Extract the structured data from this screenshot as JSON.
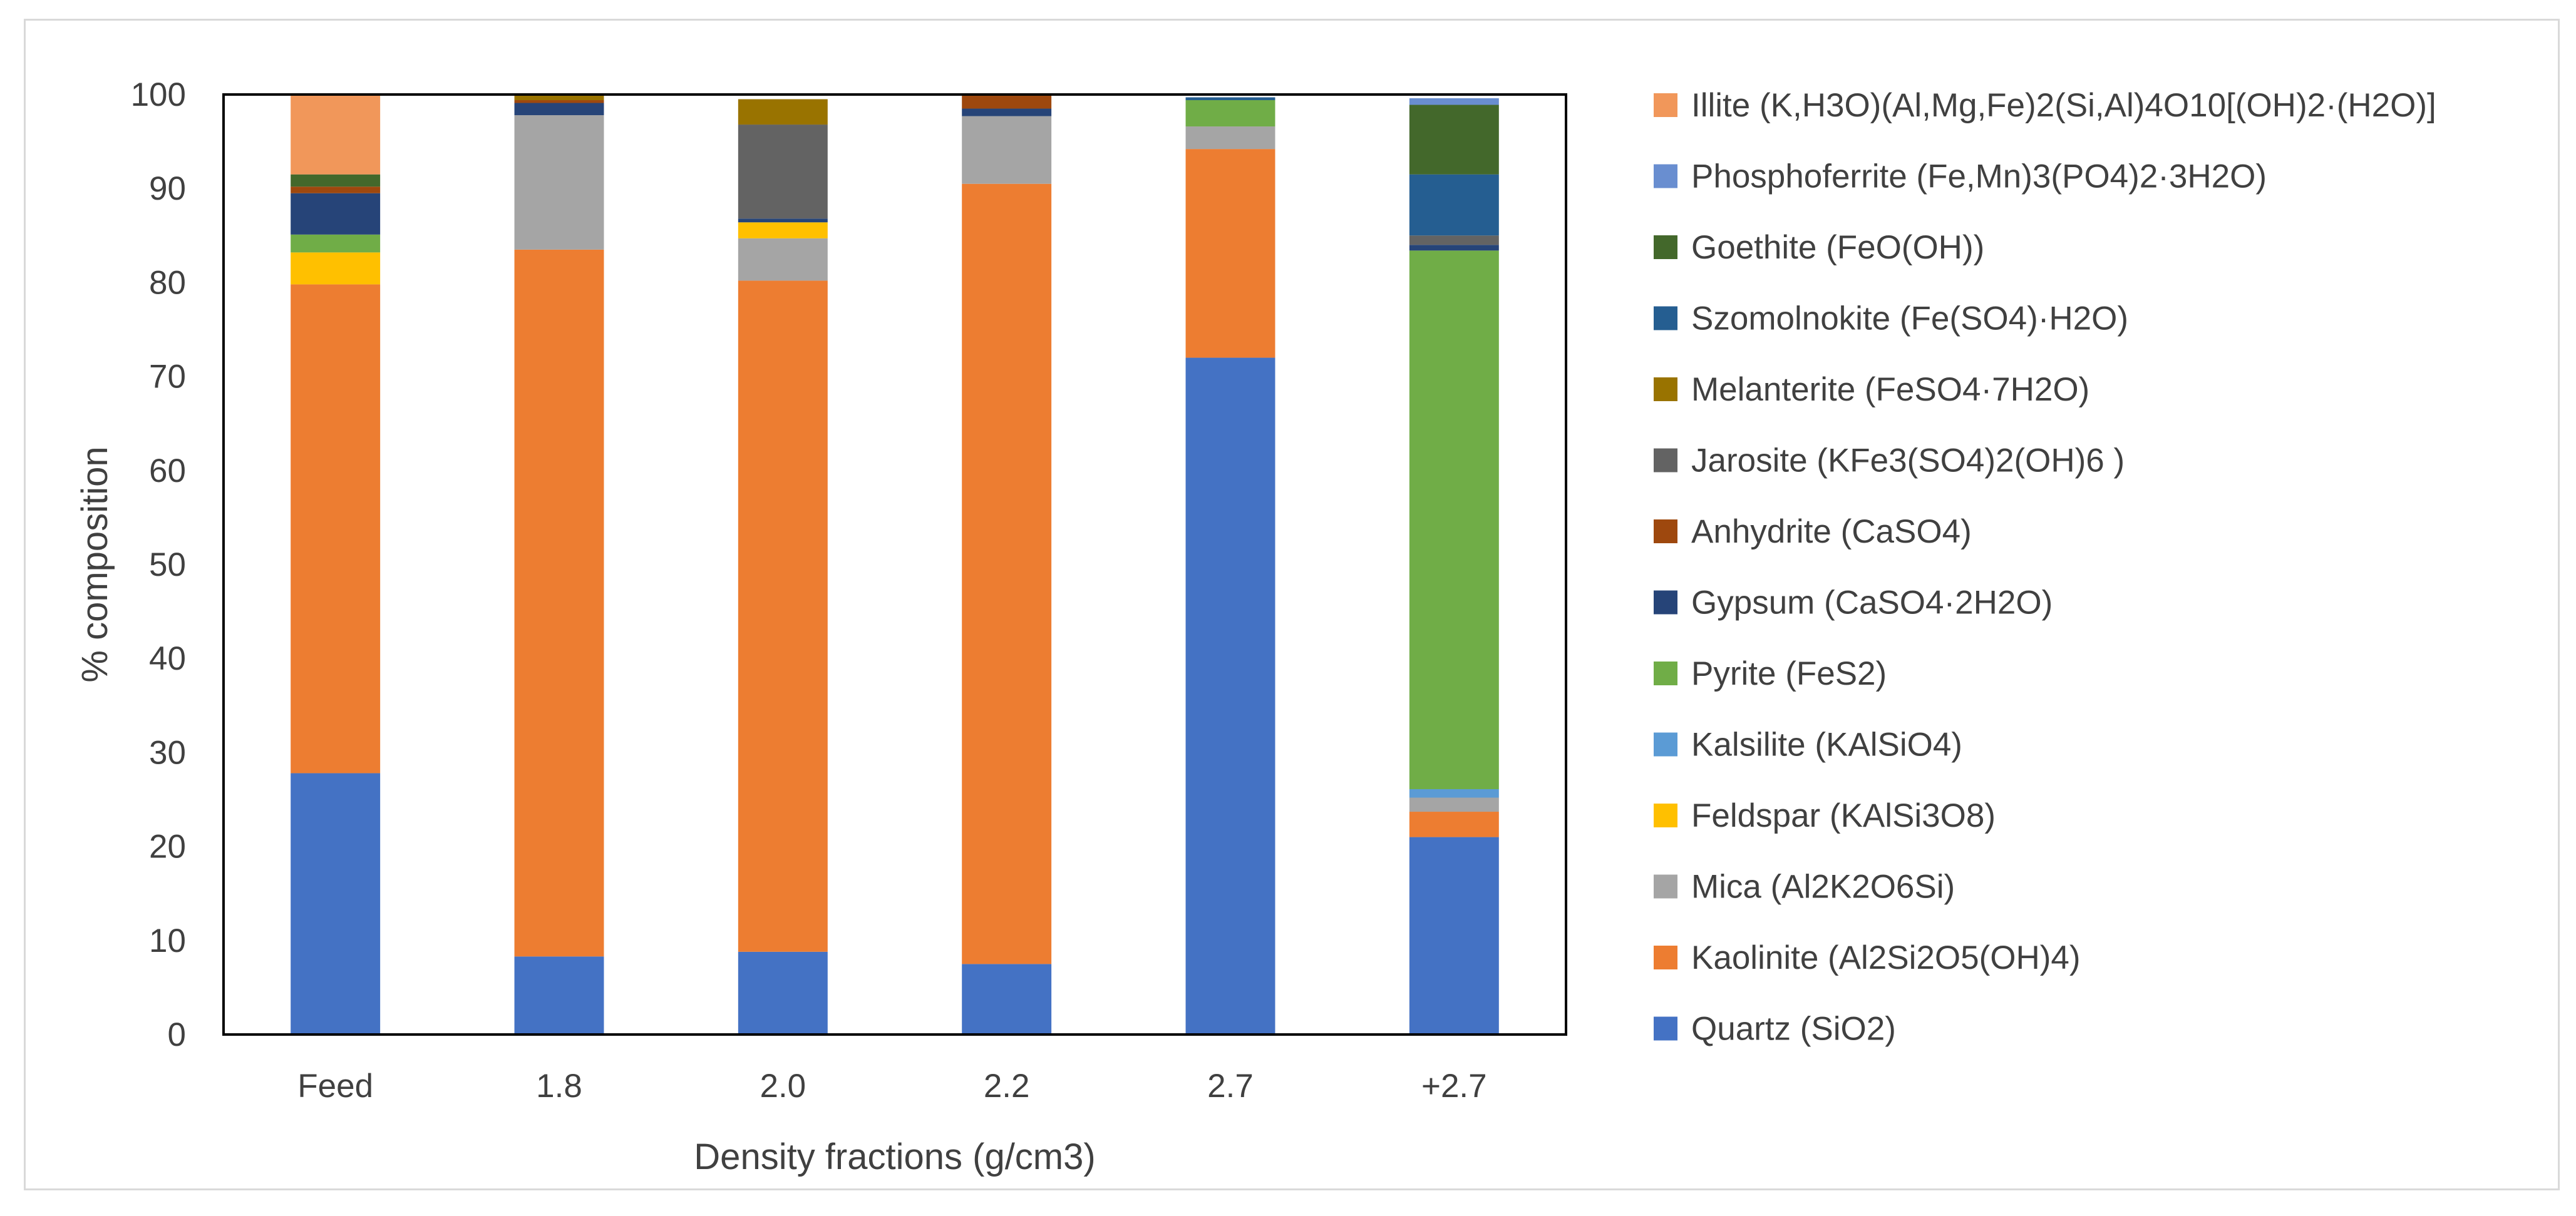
{
  "chart_data": {
    "type": "bar",
    "stacked": true,
    "title": "",
    "xlabel": "Density fractions (g/cm3)",
    "ylabel": "% composition",
    "ylim": [
      0,
      100
    ],
    "yticks": [
      0,
      10,
      20,
      30,
      40,
      50,
      60,
      70,
      80,
      90,
      100
    ],
    "grid": false,
    "legend_position": "right",
    "categories": [
      "Feed",
      "1.8",
      "2.0",
      "2.2",
      "2.7",
      "+2.7"
    ],
    "series": [
      {
        "name": "Quartz (SiO2)",
        "color": "#4472C4",
        "values": [
          27.8,
          8.3,
          8.8,
          7.5,
          72.0,
          21.0
        ]
      },
      {
        "name": "Kaolinite (Al2Si2O5(OH)4)",
        "color": "#ED7D31",
        "values": [
          52.0,
          75.2,
          71.4,
          83.0,
          22.2,
          2.7
        ]
      },
      {
        "name": "Mica (Al2K2O6Si)",
        "color": "#A5A5A5",
        "values": [
          0,
          14.3,
          4.5,
          7.2,
          2.4,
          1.5
        ]
      },
      {
        "name": "Feldspar (KAlSi3O8)",
        "color": "#FFC000",
        "values": [
          3.4,
          0,
          1.7,
          0,
          0,
          0
        ]
      },
      {
        "name": "Kalsilite (KAlSiO4)",
        "color": "#5B9BD5",
        "values": [
          0,
          0,
          0,
          0,
          0,
          0.9
        ]
      },
      {
        "name": "Pyrite (FeS2)",
        "color": "#70AD47",
        "values": [
          1.9,
          0,
          0,
          0,
          2.8,
          57.3
        ]
      },
      {
        "name": "Gypsum (CaSO4·2H2O)",
        "color": "#264478",
        "values": [
          4.4,
          1.3,
          0.4,
          0.8,
          0,
          0.6
        ]
      },
      {
        "name": "Anhydrite (CaSO4)",
        "color": "#9E480E",
        "values": [
          0.7,
          0.3,
          0,
          1.5,
          0,
          0
        ]
      },
      {
        "name": "Jarosite (KFe3(SO4)2(OH)6 )",
        "color": "#636363",
        "values": [
          0,
          0,
          10.0,
          0,
          0,
          1.0
        ]
      },
      {
        "name": "Melanterite (FeSO4·7H2O)",
        "color": "#997300",
        "values": [
          0,
          0.6,
          2.7,
          0,
          0,
          0
        ]
      },
      {
        "name": "Szomolnokite (Fe(SO4)·H2O)",
        "color": "#255E91",
        "values": [
          0,
          0,
          0,
          0,
          0.3,
          6.5
        ]
      },
      {
        "name": "Goethite (FeO(OH))",
        "color": "#43682B",
        "values": [
          1.3,
          0,
          0,
          0,
          0,
          7.4
        ]
      },
      {
        "name": "Phosphoferrite (Fe,Mn)3(PO4)2·3H2O)",
        "color": "#698ED0",
        "values": [
          0,
          0,
          0,
          0,
          0,
          0.7
        ]
      },
      {
        "name": "Illite (K,H3O)(Al,Mg,Fe)2(Si,Al)4O10[(OH)2·(H2O)]",
        "color": "#F1975A",
        "values": [
          8.5,
          0,
          0,
          0,
          0,
          0
        ]
      }
    ]
  }
}
